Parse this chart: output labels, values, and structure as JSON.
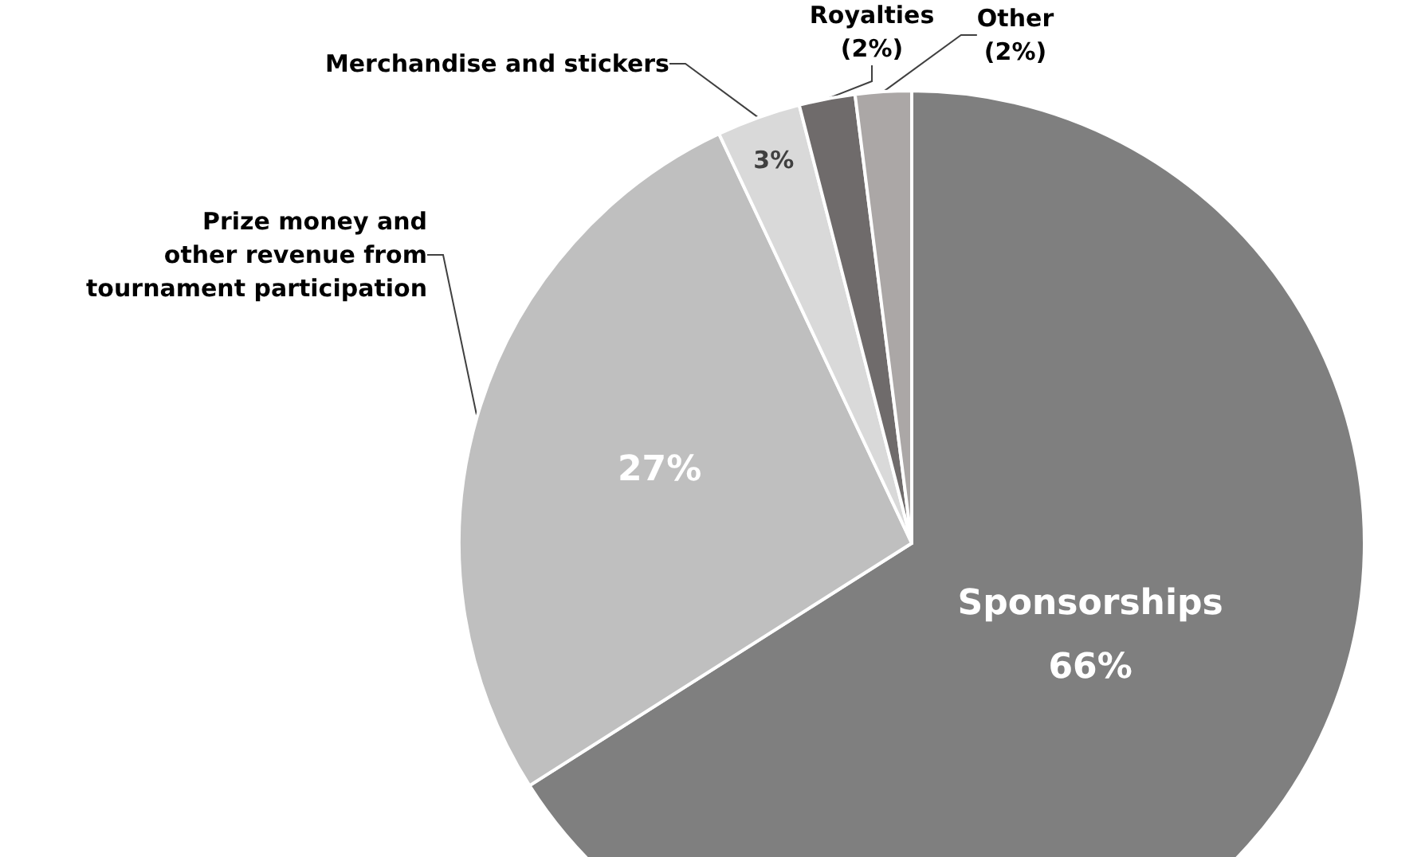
{
  "chart_data": {
    "type": "pie",
    "categories": [
      "Sponsorships",
      "Prize money and\nother revenue from\ntournament participation",
      "Merchandise and stickers",
      "Royalties",
      "Other"
    ],
    "values": [
      66,
      27,
      3,
      2,
      2
    ],
    "colors": [
      "#7f7f7f",
      "#bfbfbf",
      "#d9d9d9",
      "#6f6b6b",
      "#aba7a6"
    ],
    "value_labels": [
      "66%",
      "27%",
      "3%",
      "(2%)",
      "(2%)"
    ]
  }
}
